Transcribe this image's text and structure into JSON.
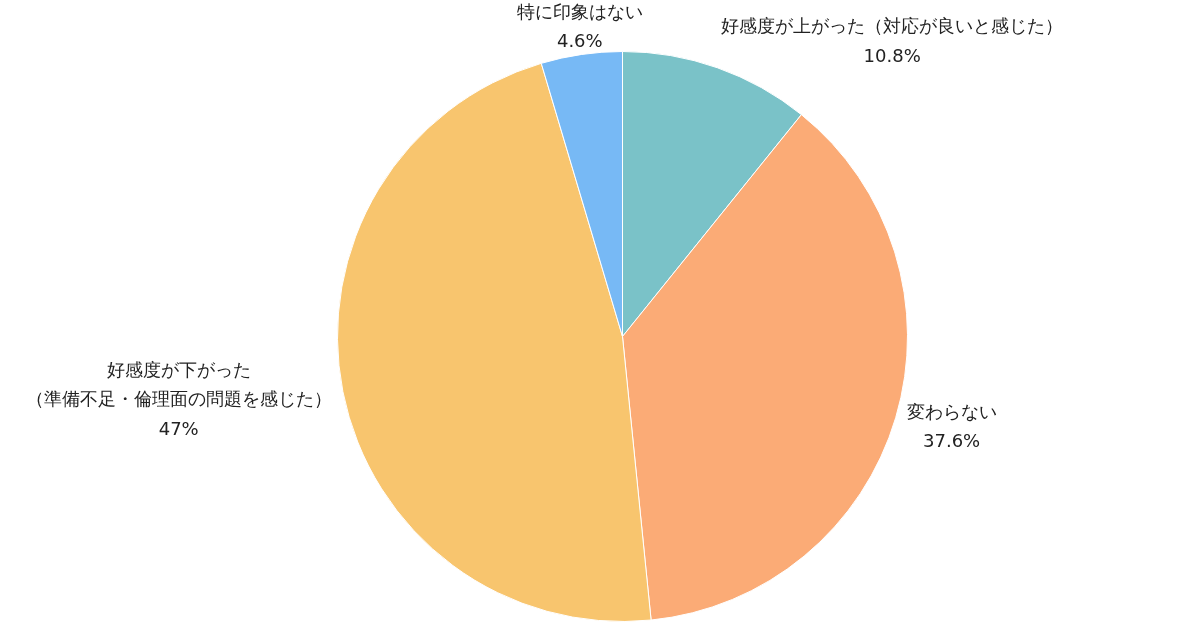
{
  "chart_data": {
    "type": "pie",
    "categories": [
      "好感度が上がった（対応が良いと感じた）",
      "変わらない",
      "好感度が下がった（準備不足・倫理面の問題を感じた）",
      "特に印象はない"
    ],
    "values": [
      10.8,
      37.6,
      47,
      4.6
    ],
    "colors": [
      "#7ac2c8",
      "#fbab76",
      "#f8c56e",
      "#77b9f5"
    ],
    "value_labels": [
      "10.8%",
      "37.6%",
      "47%",
      "4.6%"
    ]
  }
}
